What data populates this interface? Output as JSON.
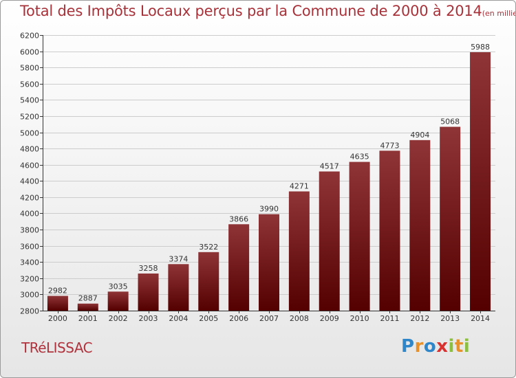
{
  "title": {
    "main": "Total des Impôts Locaux perçus par la Commune de 2000 à 2014",
    "unit": "(en milliers d'€)"
  },
  "commune": "TRéLISSAC",
  "logo": {
    "text": "Proxiti",
    "letters": [
      {
        "char": "P",
        "color": "#2f86c8"
      },
      {
        "char": "r",
        "color": "#e8912a"
      },
      {
        "char": "o",
        "color": "#2f86c8"
      },
      {
        "char": "x",
        "color": "#d8312f"
      },
      {
        "char": "i",
        "color": "#8cbf3f"
      },
      {
        "char": "t",
        "color": "#e8912a"
      },
      {
        "char": "i",
        "color": "#8cbf3f"
      }
    ]
  },
  "colors": {
    "bar_top": "#8f3437",
    "bar_bottom": "#540000",
    "grid": "#cccccc",
    "axis": "#333333",
    "text": "#333333"
  },
  "chart_data": {
    "type": "bar",
    "title": "Total des Impôts Locaux perçus par la Commune de 2000 à 2014",
    "xlabel": "",
    "ylabel": "en milliers d'€",
    "categories": [
      "2000",
      "2001",
      "2002",
      "2003",
      "2004",
      "2005",
      "2006",
      "2007",
      "2008",
      "2009",
      "2010",
      "2011",
      "2012",
      "2013",
      "2014"
    ],
    "values": [
      2982,
      2887,
      3035,
      3258,
      3374,
      3522,
      3866,
      3990,
      4271,
      4517,
      4635,
      4773,
      4904,
      5068,
      5988
    ],
    "ylim": [
      2800,
      6200
    ],
    "ytick_step": 200,
    "yticks": [
      "2800",
      "3000",
      "3200",
      "3400",
      "3600",
      "3800",
      "4000",
      "4200",
      "4400",
      "4600",
      "4800",
      "5000",
      "5200",
      "5400",
      "5600",
      "5800",
      "6000",
      "6200"
    ],
    "grid": true,
    "legend": "none"
  }
}
